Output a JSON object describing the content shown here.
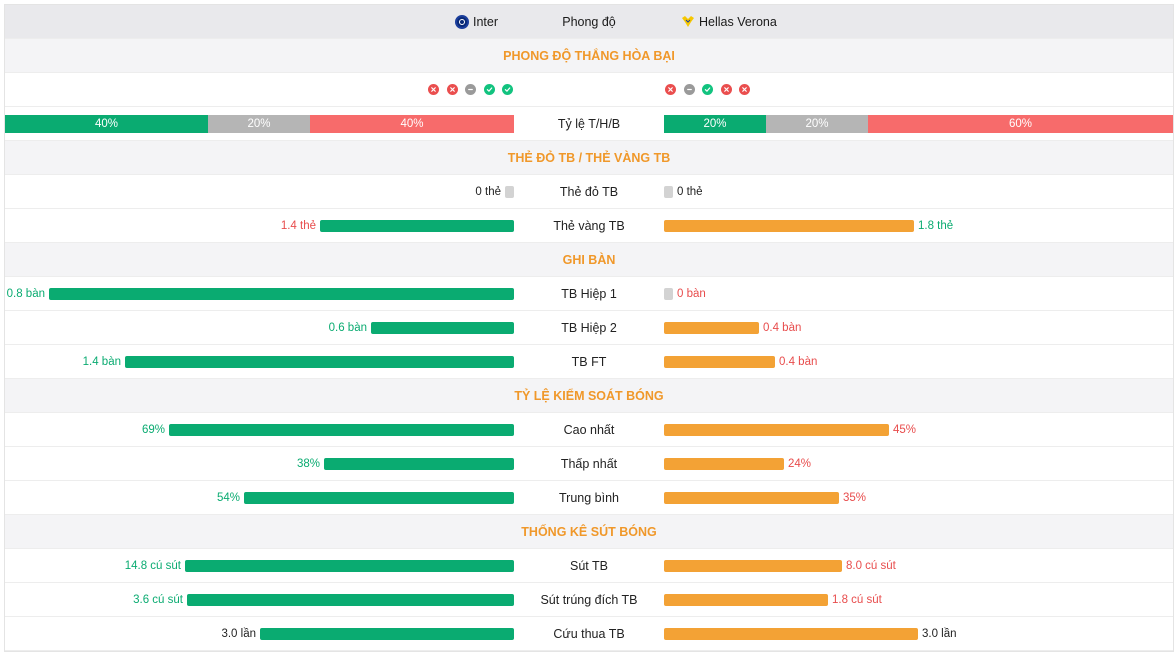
{
  "header": {
    "home_team": "Inter",
    "center_title": "Phong độ",
    "away_team": "Hellas Verona",
    "home_logo_icon": "inter-logo-icon",
    "away_logo_icon": "hellas-verona-logo-icon"
  },
  "sections": {
    "form": "PHONG ĐỘ THẮNG HÒA BẠI",
    "cards": "THẺ ĐỎ TB / THẺ VÀNG TB",
    "goals": "GHI BÀN",
    "possession": "TỶ LỆ KIỂM SOÁT BÓNG",
    "shots": "THỐNG KÊ SÚT BÓNG"
  },
  "form": {
    "home": [
      "loss",
      "loss",
      "draw",
      "win",
      "win"
    ],
    "away": [
      "loss",
      "draw",
      "win",
      "loss",
      "loss"
    ],
    "icons": {
      "loss": "x-circle-icon",
      "draw": "minus-circle-icon",
      "win": "check-circle-icon"
    }
  },
  "ratio": {
    "label": "Tỷ lệ T/H/B",
    "home": {
      "win": "40%",
      "draw": "20%",
      "loss": "40%"
    },
    "away": {
      "win": "20%",
      "draw": "20%",
      "loss": "60%"
    }
  },
  "stats": {
    "red_cards": {
      "label": "Thẻ đỏ TB",
      "home": "0 thẻ",
      "away": "0 thẻ",
      "home_value": 0,
      "away_value": 0
    },
    "yellow_cards": {
      "label": "Thẻ vàng TB",
      "home": "1.4 thẻ",
      "away": "1.8 thẻ",
      "home_value": 1.4,
      "away_value": 1.8
    },
    "goals_h1": {
      "label": "TB Hiệp 1",
      "home": "0.8 bàn",
      "away": "0 bàn",
      "home_value": 0.8,
      "away_value": 0
    },
    "goals_h2": {
      "label": "TB Hiệp 2",
      "home": "0.6 bàn",
      "away": "0.4 bàn",
      "home_value": 0.6,
      "away_value": 0.4
    },
    "goals_ft": {
      "label": "TB FT",
      "home": "1.4 bàn",
      "away": "0.4 bàn",
      "home_value": 1.4,
      "away_value": 0.4
    },
    "poss_high": {
      "label": "Cao nhất",
      "home": "69%",
      "away": "45%",
      "home_value": 69,
      "away_value": 45
    },
    "poss_low": {
      "label": "Thấp nhất",
      "home": "38%",
      "away": "24%",
      "home_value": 38,
      "away_value": 24
    },
    "poss_avg": {
      "label": "Trung bình",
      "home": "54%",
      "away": "35%",
      "home_value": 54,
      "away_value": 35
    },
    "shots_avg": {
      "label": "Sút TB",
      "home": "14.8 cú sút",
      "away": "8.0 cú sút",
      "home_value": 14.8,
      "away_value": 8.0
    },
    "shots_on_target": {
      "label": "Sút trúng đích TB",
      "home": "3.6 cú sút",
      "away": "1.8 cú sút",
      "home_value": 3.6,
      "away_value": 1.8
    },
    "saves": {
      "label": "Cứu thua TB",
      "home": "3.0 lần",
      "away": "3.0 lần",
      "home_value": 3.0,
      "away_value": 3.0
    }
  },
  "colors": {
    "green": "#0aab71",
    "orange": "#f3a235",
    "red": "#f76b6b",
    "grey": "#b5b5b5",
    "section_title": "#f0982a"
  }
}
